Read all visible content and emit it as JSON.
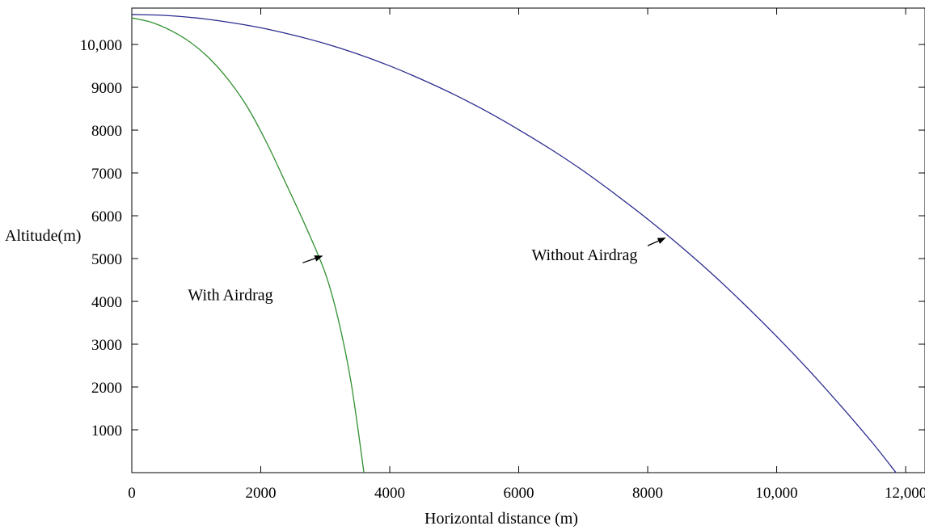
{
  "chart_data": {
    "type": "line",
    "title": "",
    "xlabel": "Horizontal distance (m)",
    "ylabel": "Altitude(m)",
    "xlim": [
      0,
      12300
    ],
    "ylim": [
      0,
      10850
    ],
    "x_ticks": [
      {
        "value": 0,
        "label": "0"
      },
      {
        "value": 2000,
        "label": "2000"
      },
      {
        "value": 4000,
        "label": "4000"
      },
      {
        "value": 6000,
        "label": "6000"
      },
      {
        "value": 8000,
        "label": "8000"
      },
      {
        "value": 10000,
        "label": "10,000"
      },
      {
        "value": 12000,
        "label": "12,000"
      }
    ],
    "y_ticks": [
      {
        "value": 1000,
        "label": "1000"
      },
      {
        "value": 2000,
        "label": "2000"
      },
      {
        "value": 3000,
        "label": "3000"
      },
      {
        "value": 4000,
        "label": "4000"
      },
      {
        "value": 5000,
        "label": "5000"
      },
      {
        "value": 6000,
        "label": "6000"
      },
      {
        "value": 7000,
        "label": "7000"
      },
      {
        "value": 8000,
        "label": "8000"
      },
      {
        "value": 9000,
        "label": "9000"
      },
      {
        "value": 10000,
        "label": "10,000"
      }
    ],
    "grid": false,
    "legend": "none",
    "series": [
      {
        "color": "#2b2b8f",
        "x": [
          0,
          500,
          1000,
          1500,
          2000,
          2500,
          3000,
          3500,
          4000,
          4500,
          5000,
          5500,
          6000,
          6500,
          7000,
          7500,
          8000,
          8500,
          9000,
          9500,
          10000,
          10500,
          11000,
          11500,
          11850
        ],
        "y": [
          10700,
          10680,
          10620,
          10520,
          10390,
          10220,
          10020,
          9780,
          9500,
          9180,
          8830,
          8440,
          8010,
          7550,
          7050,
          6500,
          5920,
          5300,
          4640,
          3930,
          3180,
          2390,
          1550,
          670,
          0
        ]
      },
      {
        "color": "#2f8f2f",
        "x": [
          0,
          300,
          600,
          900,
          1200,
          1500,
          1800,
          2100,
          2400,
          2700,
          3000,
          3200,
          3400,
          3600
        ],
        "y": [
          10620,
          10520,
          10330,
          10060,
          9680,
          9170,
          8520,
          7680,
          6720,
          5740,
          4660,
          3590,
          2110,
          0
        ]
      }
    ],
    "annotations": [
      {
        "text": "With Airdrag",
        "x": 870,
        "y": 4030,
        "arrow_from": [
          2650,
          4900
        ],
        "arrow_to": [
          2950,
          5060
        ]
      },
      {
        "text": "Without Airdrag",
        "x": 6200,
        "y": 4960,
        "arrow_from": [
          8000,
          5300
        ],
        "arrow_to": [
          8270,
          5480
        ]
      }
    ]
  }
}
